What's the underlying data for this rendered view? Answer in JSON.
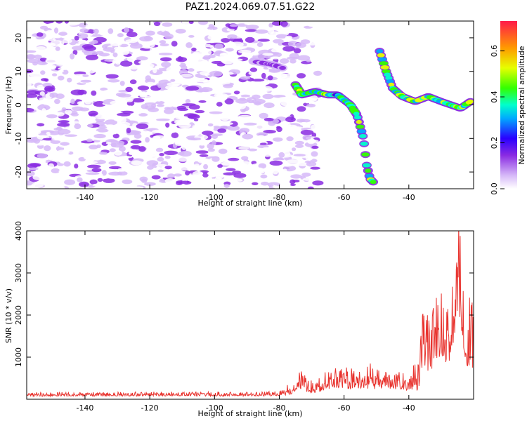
{
  "chart_data": [
    {
      "type": "heatmap",
      "title": "PAZ1.2024.069.07.51.G22",
      "xlabel": "Height of straight line (km)",
      "ylabel": "Frequency (Hz)",
      "xlim": [
        -158,
        -20
      ],
      "ylim": [
        -25,
        25
      ],
      "x_ticks": [
        -140,
        -120,
        -100,
        -80,
        -60,
        -40
      ],
      "y_ticks": [
        -20,
        -10,
        0,
        10,
        20
      ],
      "colorbar": {
        "label": "Normalized spectral amplitude",
        "range": [
          0,
          0.73
        ],
        "ticks": [
          "0.0",
          "0.2",
          "0.4",
          "0.6"
        ]
      },
      "features": [
        {
          "name": "background speckle",
          "x_range": [
            -158,
            -68
          ],
          "f_range": [
            -25,
            25
          ],
          "level": 0.1
        },
        {
          "name": "high band",
          "x": [
            -88,
            -82,
            -79
          ],
          "f": [
            13,
            12,
            11
          ],
          "level": 0.18
        },
        {
          "name": "first trace",
          "x": [
            -75,
            -73,
            -69,
            -65,
            -62,
            -58,
            -56,
            -54,
            -53,
            -52,
            -51
          ],
          "f": [
            6,
            3,
            4,
            3,
            3,
            0,
            -3,
            -10,
            -18,
            -22,
            -23
          ],
          "level": 0.5
        },
        {
          "name": "second trace",
          "x": [
            -49,
            -47,
            -45,
            -42,
            -38,
            -34,
            -30,
            -27,
            -24,
            -21
          ],
          "f": [
            16,
            10,
            5,
            2.5,
            1,
            2.5,
            1,
            0,
            -1,
            1
          ],
          "level": 0.55
        }
      ]
    },
    {
      "type": "line",
      "xlabel": "Height of straight line (km)",
      "ylabel": "SNR (10 * v/v)",
      "xlim": [
        -158,
        -20
      ],
      "ylim": [
        0,
        4000
      ],
      "x_ticks": [
        -140,
        -120,
        -100,
        -80,
        -60,
        -40
      ],
      "y_ticks": [
        1000,
        2000,
        3000,
        4000
      ],
      "color": "#e8332e",
      "envelope": {
        "x": [
          -158,
          -80,
          -76,
          -74,
          -70,
          -66,
          -62,
          -58,
          -55,
          -52,
          -48,
          -44,
          -40,
          -37,
          -36,
          -34,
          -32,
          -30,
          -28,
          -26,
          -25,
          -24,
          -23,
          -22,
          -21,
          -20
        ],
        "base": [
          80,
          90,
          160,
          280,
          180,
          250,
          330,
          300,
          280,
          320,
          290,
          300,
          250,
          300,
          900,
          800,
          1000,
          1100,
          900,
          1200,
          1800,
          2200,
          1200,
          1000,
          900,
          800
        ],
        "spread": [
          90,
          100,
          300,
          500,
          280,
          400,
          500,
          450,
          450,
          600,
          400,
          400,
          350,
          800,
          1300,
          1200,
          1400,
          1600,
          1600,
          2200,
          2500,
          2100,
          1800,
          1800,
          1700,
          1900
        ]
      }
    }
  ]
}
